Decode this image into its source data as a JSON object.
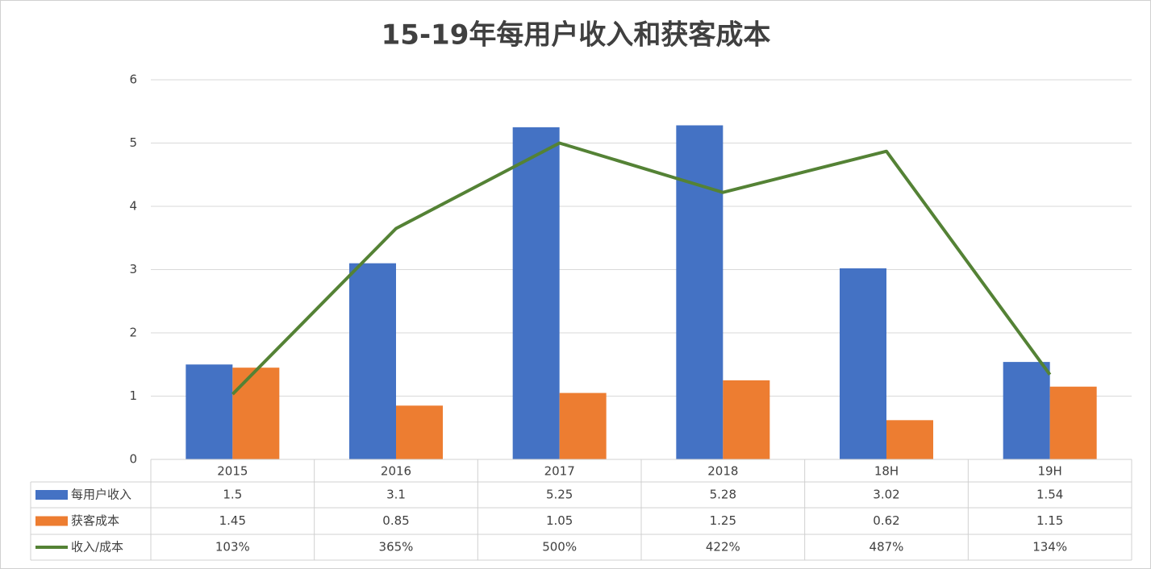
{
  "chart_data": {
    "type": "bar-line",
    "title": "15-19年每用户收入和获客成本",
    "categories": [
      "2015",
      "2016",
      "2017",
      "2018",
      "18H",
      "19H"
    ],
    "series": [
      {
        "name": "每用户收入",
        "type": "bar",
        "color": "#4472c4",
        "values": [
          1.5,
          3.1,
          5.25,
          5.28,
          3.02,
          1.54
        ]
      },
      {
        "name": "获客成本",
        "type": "bar",
        "color": "#ed7d31",
        "values": [
          1.45,
          0.85,
          1.05,
          1.25,
          0.62,
          1.15
        ]
      },
      {
        "name": "收入/成本",
        "type": "line",
        "color": "#548235",
        "values": [
          1.03,
          3.65,
          5.0,
          4.22,
          4.87,
          1.34
        ],
        "value_labels": [
          "103%",
          "365%",
          "500%",
          "422%",
          "487%",
          "134%"
        ]
      }
    ],
    "ylim": [
      0,
      6
    ],
    "yticks": [
      0,
      1,
      2,
      3,
      4,
      5,
      6
    ],
    "grid": true
  }
}
